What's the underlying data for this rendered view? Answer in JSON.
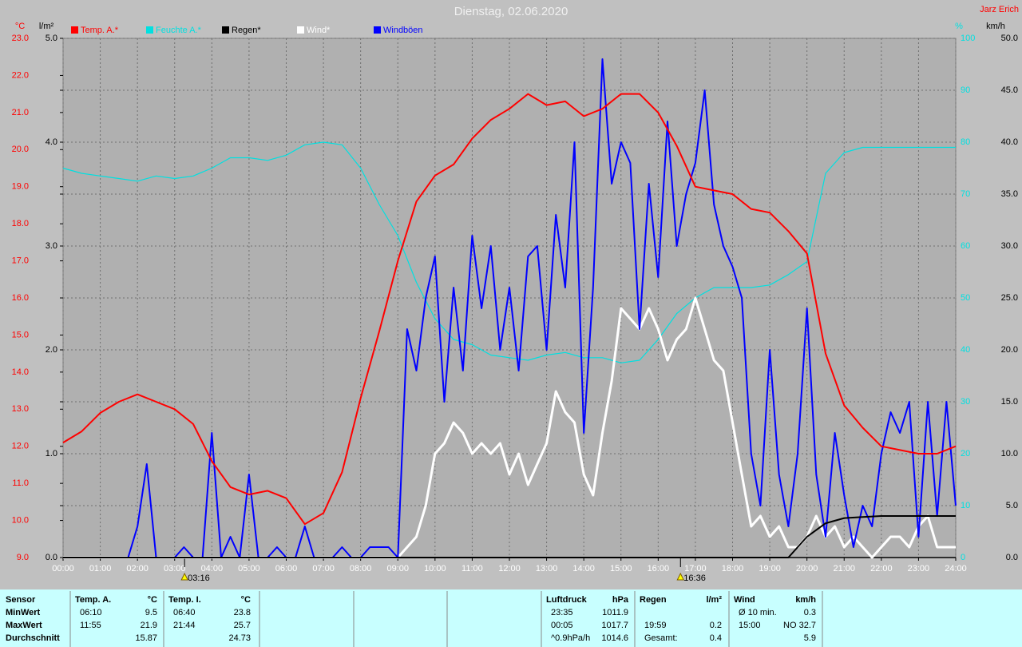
{
  "chart_data": {
    "type": "line",
    "title": "Dienstag, 02.06.2020",
    "author": "Jarz Erich",
    "axis_units": {
      "y": "°C",
      "y2": "l/m²",
      "y3": "%",
      "y4": "km/h"
    },
    "xlim": [
      0,
      24
    ],
    "xticks": [
      {
        "value": 0,
        "label": "00:00"
      },
      {
        "value": 1,
        "label": "01:00"
      },
      {
        "value": 2,
        "label": "02:00"
      },
      {
        "value": 3,
        "label": "03:00"
      },
      {
        "value": 4,
        "label": "04:00"
      },
      {
        "value": 5,
        "label": "05:00"
      },
      {
        "value": 6,
        "label": "06:00"
      },
      {
        "value": 7,
        "label": "07:00"
      },
      {
        "value": 8,
        "label": "08:00"
      },
      {
        "value": 9,
        "label": "09:00"
      },
      {
        "value": 10,
        "label": "10:00"
      },
      {
        "value": 11,
        "label": "11:00"
      },
      {
        "value": 12,
        "label": "12:00"
      },
      {
        "value": 13,
        "label": "13:00"
      },
      {
        "value": 14,
        "label": "14:00"
      },
      {
        "value": 15,
        "label": "15:00"
      },
      {
        "value": 16,
        "label": "16:00"
      },
      {
        "value": 17,
        "label": "17:00"
      },
      {
        "value": 18,
        "label": "18:00"
      },
      {
        "value": 19,
        "label": "19:00"
      },
      {
        "value": 20,
        "label": "20:00"
      },
      {
        "value": 21,
        "label": "21:00"
      },
      {
        "value": 22,
        "label": "22:00"
      },
      {
        "value": 23,
        "label": "23:00"
      },
      {
        "value": 24,
        "label": "24:00"
      }
    ],
    "ylim": [
      9,
      23
    ],
    "yticks": [
      {
        "value": 9,
        "label": "9.0"
      },
      {
        "value": 10,
        "label": "10.0"
      },
      {
        "value": 11,
        "label": "11.0"
      },
      {
        "value": 12,
        "label": "12.0"
      },
      {
        "value": 13,
        "label": "13.0"
      },
      {
        "value": 14,
        "label": "14.0"
      },
      {
        "value": 15,
        "label": "15.0"
      },
      {
        "value": 16,
        "label": "16.0"
      },
      {
        "value": 17,
        "label": "17.0"
      },
      {
        "value": 18,
        "label": "18.0"
      },
      {
        "value": 19,
        "label": "19.0"
      },
      {
        "value": 20,
        "label": "20.0"
      },
      {
        "value": 21,
        "label": "21.0"
      },
      {
        "value": 22,
        "label": "22.0"
      },
      {
        "value": 23,
        "label": "23.0"
      }
    ],
    "y2lim": [
      0,
      5
    ],
    "y2ticks": [
      {
        "value": 0,
        "label": "0.0"
      },
      {
        "value": 1,
        "label": "1.0"
      },
      {
        "value": 2,
        "label": "2.0"
      },
      {
        "value": 3,
        "label": "3.0"
      },
      {
        "value": 4,
        "label": "4.0"
      },
      {
        "value": 5,
        "label": "5.0"
      }
    ],
    "y3lim": [
      0,
      100
    ],
    "y3ticks": [
      0,
      10,
      20,
      30,
      40,
      50,
      60,
      70,
      80,
      90,
      100
    ],
    "y4lim": [
      0,
      50
    ],
    "y4ticks": [
      {
        "value": 0,
        "label": "0.0"
      },
      {
        "value": 5,
        "label": "5.0"
      },
      {
        "value": 10,
        "label": "10.0"
      },
      {
        "value": 15,
        "label": "15.0"
      },
      {
        "value": 20,
        "label": "20.0"
      },
      {
        "value": 25,
        "label": "25.0"
      },
      {
        "value": 30,
        "label": "30.0"
      },
      {
        "value": 35,
        "label": "35.0"
      },
      {
        "value": 40,
        "label": "40.0"
      },
      {
        "value": 45,
        "label": "45.0"
      },
      {
        "value": 50,
        "label": "50.0"
      }
    ],
    "grid": true,
    "annotations": [
      "03:16",
      "16:36"
    ],
    "series": [
      {
        "name": "Temp. A.*",
        "color": "#ff0000",
        "axis": "y",
        "x": [
          0,
          0.5,
          1,
          1.5,
          2,
          2.5,
          3,
          3.5,
          4,
          4.5,
          5,
          5.5,
          6,
          6.5,
          7,
          7.5,
          8,
          8.5,
          9,
          9.5,
          10,
          10.5,
          11,
          11.5,
          12,
          12.5,
          13,
          13.5,
          14,
          14.5,
          15,
          15.5,
          16,
          16.5,
          17,
          17.5,
          18,
          18.5,
          19,
          19.5,
          20,
          20.5,
          21,
          21.5,
          22,
          22.5,
          23,
          23.5,
          24
        ],
        "values": [
          12.1,
          12.4,
          12.9,
          13.2,
          13.4,
          13.2,
          13.0,
          12.6,
          11.6,
          10.9,
          10.7,
          10.8,
          10.6,
          9.9,
          10.2,
          11.3,
          13.3,
          15.1,
          17.0,
          18.6,
          19.3,
          19.6,
          20.3,
          20.8,
          21.1,
          21.5,
          21.2,
          21.3,
          20.9,
          21.1,
          21.5,
          21.5,
          21.0,
          20.1,
          19.0,
          18.9,
          18.8,
          18.4,
          18.3,
          17.8,
          17.2,
          14.5,
          13.1,
          12.5,
          12.0,
          11.9,
          11.8,
          11.8,
          12.0
        ]
      },
      {
        "name": "Feuchte A.*",
        "color": "#00e0e0",
        "axis": "y3",
        "x": [
          0,
          0.5,
          1,
          1.5,
          2,
          2.5,
          3,
          3.5,
          4,
          4.5,
          5,
          5.5,
          6,
          6.5,
          7,
          7.5,
          8,
          8.5,
          9,
          9.5,
          10,
          10.5,
          11,
          11.5,
          12,
          12.5,
          13,
          13.5,
          14,
          14.5,
          15,
          15.5,
          16,
          16.5,
          17,
          17.5,
          18,
          18.5,
          19,
          19.5,
          20,
          20.5,
          21,
          21.5,
          22,
          22.5,
          23,
          23.5,
          24
        ],
        "values": [
          75,
          74,
          73.5,
          73,
          72.5,
          73.5,
          73,
          73.5,
          75,
          77,
          77,
          76.5,
          77.5,
          79.5,
          80,
          79.5,
          75,
          68,
          62,
          53,
          46,
          42,
          41,
          39,
          38.5,
          38,
          39,
          39.5,
          38.5,
          38.5,
          37.5,
          38,
          42,
          47,
          50,
          52,
          52,
          52,
          52.5,
          54.5,
          57,
          74,
          78,
          79,
          79,
          79,
          79,
          79,
          79
        ]
      },
      {
        "name": "Regen*",
        "color": "#000000",
        "axis": "y2",
        "x": [
          0,
          0.5,
          1,
          1.5,
          2,
          2.5,
          3,
          3.5,
          4,
          4.5,
          5,
          5.5,
          6,
          6.5,
          7,
          7.5,
          8,
          8.5,
          9,
          9.5,
          10,
          10.5,
          11,
          11.5,
          12,
          12.5,
          13,
          13.5,
          14,
          14.5,
          15,
          15.5,
          16,
          16.5,
          17,
          17.5,
          18,
          18.5,
          19,
          19.5,
          20,
          20.5,
          21,
          21.5,
          22,
          22.5,
          23,
          23.5,
          24
        ],
        "values": [
          0,
          0,
          0,
          0,
          0,
          0,
          0,
          0,
          0,
          0,
          0,
          0,
          0,
          0,
          0,
          0,
          0,
          0,
          0,
          0,
          0,
          0,
          0,
          0,
          0,
          0,
          0,
          0,
          0,
          0,
          0,
          0,
          0,
          0,
          0,
          0,
          0,
          0,
          0,
          0,
          0.2,
          0.33,
          0.38,
          0.39,
          0.4,
          0.4,
          0.4,
          0.4,
          0.4
        ]
      },
      {
        "name": "Wind*",
        "color": "#ffffff",
        "axis": "y4",
        "x": [
          0,
          0.25,
          0.5,
          0.75,
          1,
          1.25,
          1.5,
          1.75,
          2,
          2.25,
          2.5,
          2.75,
          3,
          3.25,
          3.5,
          3.75,
          4,
          4.25,
          4.5,
          4.75,
          5,
          5.25,
          5.5,
          5.75,
          6,
          6.25,
          6.5,
          6.75,
          7,
          7.25,
          7.5,
          7.75,
          8,
          8.25,
          8.5,
          8.75,
          9,
          9.25,
          9.5,
          9.75,
          10,
          10.25,
          10.5,
          10.75,
          11,
          11.25,
          11.5,
          11.75,
          12,
          12.25,
          12.5,
          12.75,
          13,
          13.25,
          13.5,
          13.75,
          14,
          14.25,
          14.5,
          14.75,
          15,
          15.25,
          15.5,
          15.75,
          16,
          16.25,
          16.5,
          16.75,
          17,
          17.25,
          17.5,
          17.75,
          18,
          18.25,
          18.5,
          18.75,
          19,
          19.25,
          19.5,
          19.75,
          20,
          20.25,
          20.5,
          20.75,
          21,
          21.25,
          21.5,
          21.75,
          22,
          22.25,
          22.5,
          22.75,
          23,
          23.25,
          23.5,
          23.75,
          24
        ],
        "values": [
          0,
          0,
          0,
          0,
          0,
          0,
          0,
          0,
          0,
          0,
          0,
          0,
          0,
          0,
          0,
          0,
          0,
          0,
          0,
          0,
          0,
          0,
          0,
          0,
          0,
          0,
          0,
          0,
          0,
          0,
          0,
          0,
          0,
          0,
          0,
          0,
          0,
          1,
          2,
          5,
          10,
          11,
          13,
          12,
          10,
          11,
          10,
          11,
          8,
          10,
          7,
          9,
          11,
          16,
          14,
          13,
          8,
          6,
          12,
          17,
          24,
          23,
          22,
          24,
          22,
          19,
          21,
          22,
          25,
          22,
          19,
          18,
          13,
          8,
          3,
          4,
          2,
          3,
          1,
          1,
          2,
          4,
          2,
          3,
          1,
          2,
          1,
          0,
          1,
          2,
          2,
          1,
          3,
          4,
          1,
          1,
          1
        ]
      },
      {
        "name": "Windböen",
        "color": "#0000ff",
        "axis": "y4",
        "x": [
          0,
          0.25,
          0.5,
          0.75,
          1,
          1.25,
          1.5,
          1.75,
          2,
          2.25,
          2.5,
          2.75,
          3,
          3.25,
          3.5,
          3.75,
          4,
          4.25,
          4.5,
          4.75,
          5,
          5.25,
          5.5,
          5.75,
          6,
          6.25,
          6.5,
          6.75,
          7,
          7.25,
          7.5,
          7.75,
          8,
          8.25,
          8.5,
          8.75,
          9,
          9.25,
          9.5,
          9.75,
          10,
          10.25,
          10.5,
          10.75,
          11,
          11.25,
          11.5,
          11.75,
          12,
          12.25,
          12.5,
          12.75,
          13,
          13.25,
          13.5,
          13.75,
          14,
          14.25,
          14.5,
          14.75,
          15,
          15.25,
          15.5,
          15.75,
          16,
          16.25,
          16.5,
          16.75,
          17,
          17.25,
          17.5,
          17.75,
          18,
          18.25,
          18.5,
          18.75,
          19,
          19.25,
          19.5,
          19.75,
          20,
          20.25,
          20.5,
          20.75,
          21,
          21.25,
          21.5,
          21.75,
          22,
          22.25,
          22.5,
          22.75,
          23,
          23.25,
          23.5,
          23.75,
          24
        ],
        "values": [
          0,
          0,
          0,
          0,
          0,
          0,
          0,
          0,
          3,
          9,
          0,
          0,
          0,
          1,
          0,
          0,
          12,
          0,
          2,
          0,
          8,
          0,
          0,
          1,
          0,
          0,
          3,
          0,
          0,
          0,
          1,
          0,
          0,
          1,
          1,
          1,
          0,
          22,
          18,
          25,
          29,
          15,
          26,
          18,
          31,
          24,
          30,
          20,
          26,
          18,
          29,
          30,
          20,
          33,
          26,
          40,
          12,
          26,
          48,
          36,
          40,
          38,
          22,
          36,
          27,
          42,
          30,
          35,
          38,
          45,
          34,
          30,
          28,
          25,
          10,
          5,
          20,
          8,
          3,
          10,
          24,
          8,
          2,
          12,
          6,
          1,
          5,
          3,
          10,
          14,
          12,
          15,
          2,
          15,
          4,
          15,
          5
        ]
      }
    ]
  },
  "table": {
    "row_labels": [
      "Sensor",
      "MinWert",
      "MaxWert",
      "Durchschnitt"
    ],
    "columns": [
      {
        "header": "Temp. A.",
        "unit": "°C",
        "rows": [
          [
            "06:10",
            "9.5"
          ],
          [
            "11:55",
            "21.9"
          ],
          [
            null,
            "15.87"
          ]
        ]
      },
      {
        "header": "Temp. I.",
        "unit": "°C",
        "rows": [
          [
            "06:40",
            "23.8"
          ],
          [
            "21:44",
            "25.7"
          ],
          [
            null,
            "24.73"
          ]
        ]
      },
      {
        "header": "Luftdruck",
        "unit": "hPa",
        "rows": [
          [
            "23:35",
            "1011.9"
          ],
          [
            "00:05",
            "1017.7"
          ],
          [
            "^0.9hPa/h",
            "1014.6"
          ]
        ]
      },
      {
        "header": "Regen",
        "unit": "l/m²",
        "rows": [
          [
            null,
            null
          ],
          [
            "19:59",
            "0.2"
          ],
          [
            "Gesamt:",
            "0.4"
          ]
        ]
      },
      {
        "header": "Wind",
        "unit": "km/h",
        "rows": [
          [
            "Ø 10 min.",
            "0.3"
          ],
          [
            "15:00",
            "NO 32.7"
          ],
          [
            null,
            "5.9"
          ]
        ]
      }
    ]
  }
}
